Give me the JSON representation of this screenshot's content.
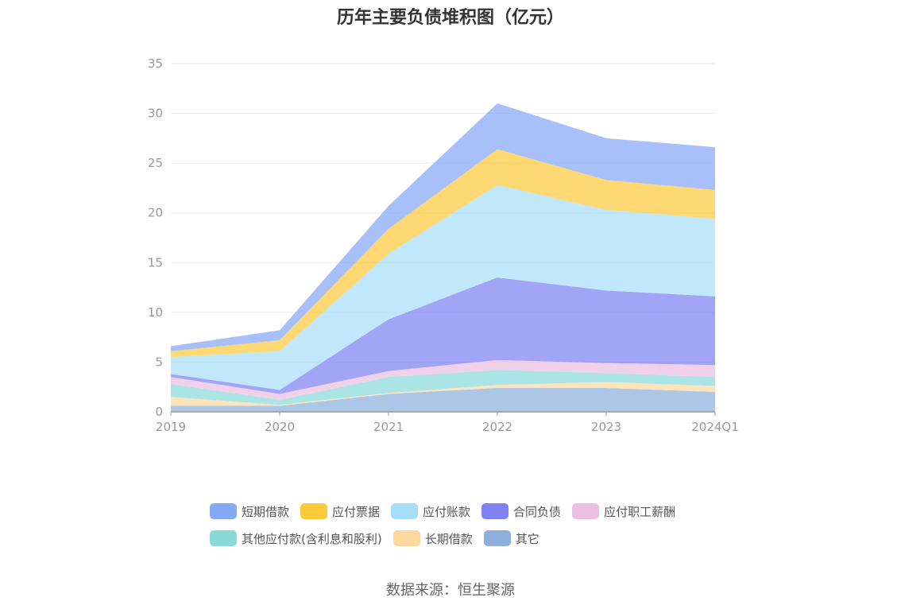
{
  "title": "历年主要负债堆积图（亿元）",
  "source": "数据来源：恒生聚源",
  "chart_data": {
    "type": "area",
    "stacked": true,
    "categories": [
      "2019",
      "2020",
      "2021",
      "2022",
      "2023",
      "2024Q1"
    ],
    "ylim": [
      0,
      35
    ],
    "yticks": [
      0,
      5,
      10,
      15,
      20,
      25,
      30,
      35
    ],
    "grid": true,
    "legend_position": "bottom",
    "series": [
      {
        "name": "其它",
        "color": "#8eaedc",
        "values": [
          0.6,
          0.6,
          1.8,
          2.4,
          2.4,
          2.0
        ]
      },
      {
        "name": "长期借款",
        "color": "#fdd9a0",
        "values": [
          0.9,
          0.1,
          0.1,
          0.3,
          0.6,
          0.6
        ]
      },
      {
        "name": "其他应付款(含利息和股利)",
        "color": "#8ad9d9",
        "values": [
          1.3,
          0.5,
          1.6,
          1.5,
          0.9,
          0.9
        ]
      },
      {
        "name": "应付职工薪酬",
        "color": "#eabfe0",
        "values": [
          0.7,
          0.6,
          0.6,
          1.0,
          1.0,
          1.2
        ]
      },
      {
        "name": "合同负债",
        "color": "#7e82f2",
        "values": [
          0.3,
          0.4,
          5.2,
          8.3,
          7.3,
          6.9
        ]
      },
      {
        "name": "应付账款",
        "color": "#a8dff8",
        "values": [
          1.7,
          3.9,
          6.6,
          9.3,
          8.1,
          7.8
        ]
      },
      {
        "name": "应付票据",
        "color": "#fdc93d",
        "values": [
          0.6,
          1.1,
          2.5,
          3.6,
          3.0,
          2.9
        ]
      },
      {
        "name": "短期借款",
        "color": "#86a8f8",
        "values": [
          0.5,
          1.0,
          2.3,
          4.6,
          4.2,
          4.3
        ]
      }
    ],
    "legend_order": [
      "短期借款",
      "应付票据",
      "应付账款",
      "合同负债",
      "应付职工薪酬",
      "其他应付款(含利息和股利)",
      "长期借款",
      "其它"
    ]
  }
}
